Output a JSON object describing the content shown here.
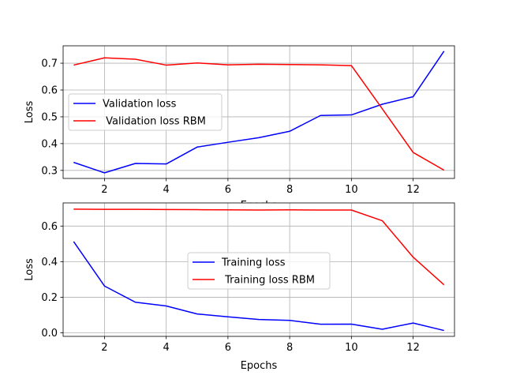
{
  "chart_data": [
    {
      "type": "line",
      "xlabel": "Epochs",
      "ylabel": "Loss",
      "xlim": [
        0.66,
        13.34
      ],
      "ylim": [
        0.27,
        0.765
      ],
      "xticks": [
        2,
        4,
        6,
        8,
        10,
        12
      ],
      "yticks": [
        0.3,
        0.4,
        0.5,
        0.6,
        0.7
      ],
      "ytick_labels": [
        "0.3",
        "0.4",
        "0.5",
        "0.6",
        "0.7"
      ],
      "grid": true,
      "legend_position": "center-left",
      "x": [
        1,
        2,
        3,
        4,
        5,
        6,
        7,
        8,
        9,
        10,
        11,
        12,
        13
      ],
      "series": [
        {
          "name": "Validation loss",
          "color": "#0000ff",
          "values": [
            0.33,
            0.291,
            0.326,
            0.324,
            0.387,
            0.405,
            0.422,
            0.446,
            0.505,
            0.507,
            0.547,
            0.575,
            0.745
          ]
        },
        {
          "name": " Validation loss RBM",
          "color": "#ff0000",
          "values": [
            0.693,
            0.72,
            0.715,
            0.693,
            0.701,
            0.694,
            0.696,
            0.695,
            0.694,
            0.691,
            0.53,
            0.367,
            0.301
          ]
        }
      ]
    },
    {
      "type": "line",
      "xlabel": "Epochs",
      "ylabel": "Loss",
      "xlim": [
        0.66,
        13.34
      ],
      "ylim": [
        -0.02,
        0.73
      ],
      "xticks": [
        2,
        4,
        6,
        8,
        10,
        12
      ],
      "yticks": [
        0.0,
        0.2,
        0.4,
        0.6
      ],
      "ytick_labels": [
        "0.0",
        "0.2",
        "0.4",
        "0.6"
      ],
      "grid": true,
      "legend_position": "center",
      "x": [
        1,
        2,
        3,
        4,
        5,
        6,
        7,
        8,
        9,
        10,
        11,
        12,
        13
      ],
      "series": [
        {
          "name": "Training loss",
          "color": "#0000ff",
          "values": [
            0.513,
            0.263,
            0.172,
            0.151,
            0.106,
            0.09,
            0.075,
            0.07,
            0.048,
            0.049,
            0.02,
            0.055,
            0.013
          ]
        },
        {
          "name": " Training loss RBM",
          "color": "#ff0000",
          "values": [
            0.695,
            0.694,
            0.694,
            0.693,
            0.692,
            0.691,
            0.69,
            0.691,
            0.69,
            0.69,
            0.63,
            0.425,
            0.27
          ]
        }
      ]
    }
  ]
}
